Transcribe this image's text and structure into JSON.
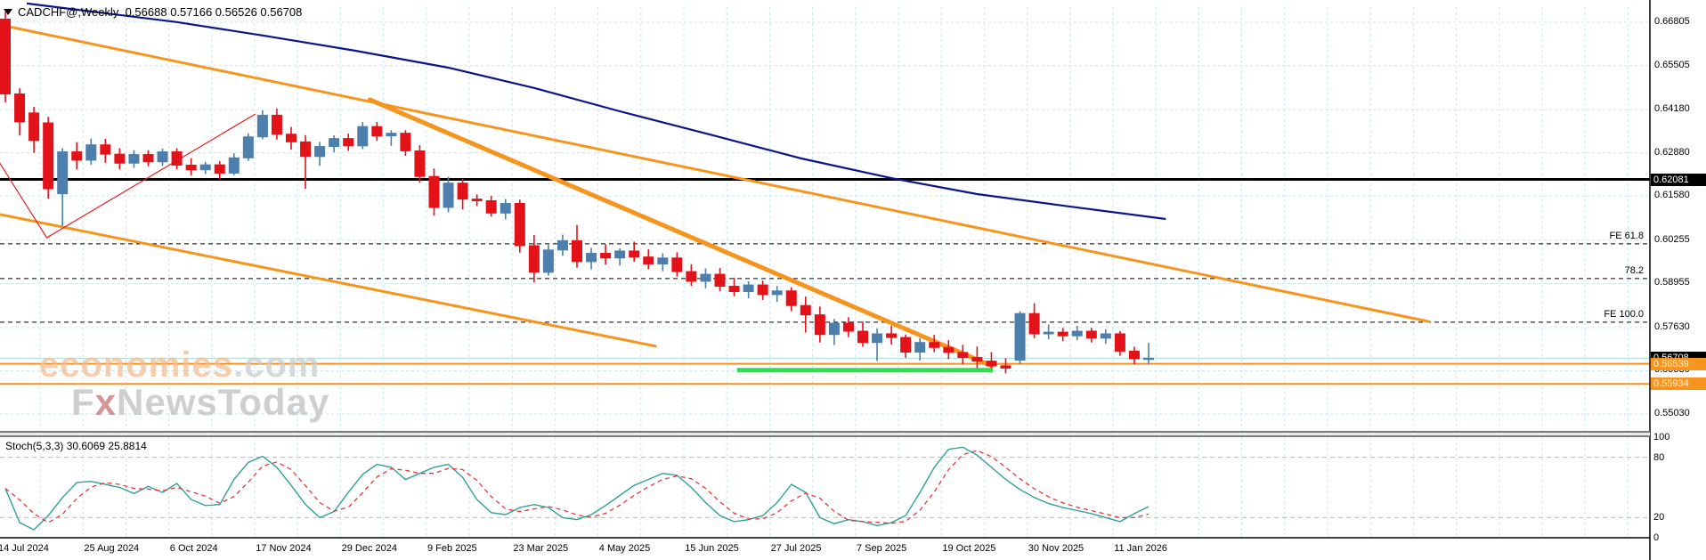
{
  "header": {
    "symbol_title": "CADCHF@,Weekly",
    "ohlc_text": "0.56688 0.57166 0.56526 0.56708",
    "open": "0.56688",
    "high": "0.57166",
    "low": "0.56526",
    "close": "0.56708"
  },
  "watermark": {
    "line1_main": "economies",
    "line1_suffix": ".com",
    "line2_a": "F",
    "line2_b": "x",
    "line2_c": "NewsToday"
  },
  "colors": {
    "bull": "#4d7fad",
    "bear": "#e31219",
    "grid": "#c9e7f0",
    "orange": "#f7941d",
    "navy": "#0b1589",
    "stoch_k": "#2fa198",
    "stoch_d": "#e53935",
    "support_green": "#2ee04e",
    "current_price_line": "#aadcd4",
    "zigzag_red": "#e02020",
    "black_level": "#000000"
  },
  "y_axis": {
    "labels": [
      "0.66805",
      "0.65505",
      "0.64180",
      "0.62880",
      "0.61580",
      "0.60255",
      "0.58955",
      "0.57630",
      "0.56330",
      "0.55030"
    ],
    "top_price": 0.66805,
    "step": 0.013
  },
  "x_axis": {
    "date_labels": [
      "14 Jul 2024",
      "25 Aug 2024",
      "6 Oct 2024",
      "17 Nov 2024",
      "29 Dec 2024",
      "9 Feb 2025",
      "23 Mar 2025",
      "4 May 2025",
      "15 Jun 2025",
      "27 Jul 2025",
      "7 Sep 2025",
      "19 Oct 2025",
      "30 Nov 2025",
      "11 Jan 2026"
    ]
  },
  "badges": [
    {
      "text": "0.62081",
      "price": 0.62081,
      "style": "black"
    },
    {
      "text": "0.56708",
      "price": 0.56708,
      "style": "black"
    },
    {
      "text": "0.56539",
      "price": 0.56539,
      "style": "orange"
    },
    {
      "text": "0.55934",
      "price": 0.55934,
      "style": "orange"
    }
  ],
  "stoch_panel": {
    "label": "Stoch(5,3,3) 30.6069 25.8814",
    "scale_labels": [
      "100",
      "80",
      "20",
      "0"
    ],
    "scale_values": [
      100,
      80,
      20,
      0
    ],
    "k_value": 30.6069,
    "d_value": 25.8814
  },
  "chart_data": {
    "type": "candlestick",
    "symbol": "CADCHF",
    "timeframe": "Weekly",
    "y_range": [
      0.548,
      0.6747
    ],
    "fibo_expansion": [
      {
        "label": "FE 61.8",
        "price": 0.60144
      },
      {
        "label": "78.2",
        "price": 0.59101
      },
      {
        "label": "FE 100.0",
        "price": 0.5779
      }
    ],
    "hlines": [
      {
        "price": 0.62081,
        "color": "black",
        "width": 3,
        "note": "pivot"
      },
      {
        "price": 0.56539,
        "color": "orange",
        "width": 2,
        "note": "support"
      },
      {
        "price": 0.55934,
        "color": "orange",
        "width": 2,
        "note": "support"
      },
      {
        "price": 0.56708,
        "color": "current",
        "width": 1,
        "note": "last price"
      }
    ],
    "support_segment": {
      "price": 0.5635,
      "week_start": 51.2,
      "week_end": 69.1
    },
    "trendlines": [
      {
        "name": "upper-resistance",
        "w1": -0.4,
        "p1": 0.6673,
        "w2": 99.6,
        "p2": 0.5781,
        "width": 3
      },
      {
        "name": "steep-resistance",
        "w1": 25.5,
        "p1": 0.6448,
        "w2": 69.0,
        "p2": 0.5648,
        "width": 5
      },
      {
        "name": "lower-channel",
        "w1": -0.4,
        "p1": 0.6103,
        "w2": 45.5,
        "p2": 0.5707,
        "width": 3
      }
    ],
    "ma_line": [
      [
        1.5,
        0.6737
      ],
      [
        6,
        0.6713
      ],
      [
        12,
        0.6681
      ],
      [
        18,
        0.6641
      ],
      [
        24.5,
        0.6595
      ],
      [
        31,
        0.6544
      ],
      [
        37,
        0.6483
      ],
      [
        43,
        0.6413
      ],
      [
        49.5,
        0.6341
      ],
      [
        55.7,
        0.6271
      ],
      [
        62,
        0.6212
      ],
      [
        68,
        0.6164
      ],
      [
        74.4,
        0.6127
      ],
      [
        81.2,
        0.6089
      ]
    ],
    "zigzag": [
      [
        -0.4,
        0.6258
      ],
      [
        2.9,
        0.6033
      ],
      [
        17.5,
        0.6405
      ]
    ],
    "candles_ohlc": [
      [
        0.669,
        0.6712,
        0.644,
        0.6465
      ],
      [
        0.6465,
        0.6482,
        0.634,
        0.6381
      ],
      [
        0.6408,
        0.6426,
        0.6288,
        0.6325
      ],
      [
        0.6378,
        0.6396,
        0.615,
        0.618
      ],
      [
        0.6165,
        0.6302,
        0.6068,
        0.6291
      ],
      [
        0.6291,
        0.632,
        0.6238,
        0.6266
      ],
      [
        0.6266,
        0.6331,
        0.6252,
        0.6312
      ],
      [
        0.6312,
        0.633,
        0.6258,
        0.6284
      ],
      [
        0.6284,
        0.6302,
        0.6238,
        0.6257
      ],
      [
        0.6257,
        0.6296,
        0.6243,
        0.6283
      ],
      [
        0.6283,
        0.6296,
        0.6248,
        0.6261
      ],
      [
        0.6261,
        0.6301,
        0.6249,
        0.6291
      ],
      [
        0.6291,
        0.6302,
        0.6238,
        0.6251
      ],
      [
        0.6251,
        0.6272,
        0.622,
        0.6237
      ],
      [
        0.6237,
        0.6261,
        0.6224,
        0.6252
      ],
      [
        0.6252,
        0.6263,
        0.6208,
        0.6227
      ],
      [
        0.6227,
        0.6287,
        0.6221,
        0.6273
      ],
      [
        0.6273,
        0.6347,
        0.6264,
        0.6336
      ],
      [
        0.6336,
        0.6416,
        0.6329,
        0.6401
      ],
      [
        0.6401,
        0.6421,
        0.6328,
        0.6344
      ],
      [
        0.6344,
        0.6366,
        0.6298,
        0.6321
      ],
      [
        0.6321,
        0.6341,
        0.618,
        0.6277
      ],
      [
        0.6277,
        0.6321,
        0.6249,
        0.6307
      ],
      [
        0.6307,
        0.6341,
        0.6289,
        0.6331
      ],
      [
        0.6331,
        0.6346,
        0.6294,
        0.6309
      ],
      [
        0.6309,
        0.6381,
        0.6299,
        0.6367
      ],
      [
        0.6367,
        0.6381,
        0.6324,
        0.6339
      ],
      [
        0.6339,
        0.6356,
        0.6309,
        0.6347
      ],
      [
        0.6347,
        0.6356,
        0.6279,
        0.6294
      ],
      [
        0.6294,
        0.6311,
        0.6198,
        0.6217
      ],
      [
        0.6217,
        0.6241,
        0.6099,
        0.6124
      ],
      [
        0.6124,
        0.6216,
        0.6109,
        0.6197
      ],
      [
        0.6197,
        0.6211,
        0.6118,
        0.6149
      ],
      [
        0.6149,
        0.6163,
        0.6128,
        0.6144
      ],
      [
        0.6144,
        0.6159,
        0.6096,
        0.6107
      ],
      [
        0.6107,
        0.6149,
        0.6088,
        0.6136
      ],
      [
        0.6136,
        0.6147,
        0.5988,
        0.6009
      ],
      [
        0.6009,
        0.6041,
        0.5898,
        0.5929
      ],
      [
        0.5929,
        0.6012,
        0.5919,
        0.5996
      ],
      [
        0.5996,
        0.6042,
        0.5978,
        0.6024
      ],
      [
        0.6024,
        0.6071,
        0.5943,
        0.5961
      ],
      [
        0.5961,
        0.6002,
        0.5938,
        0.5986
      ],
      [
        0.5986,
        0.6013,
        0.5952,
        0.5972
      ],
      [
        0.5972,
        0.6001,
        0.5949,
        0.5993
      ],
      [
        0.5993,
        0.6021,
        0.5961,
        0.5975
      ],
      [
        0.5975,
        0.5998,
        0.5938,
        0.5954
      ],
      [
        0.5954,
        0.5986,
        0.5932,
        0.5972
      ],
      [
        0.5972,
        0.5989,
        0.5916,
        0.5931
      ],
      [
        0.5931,
        0.5953,
        0.5888,
        0.5902
      ],
      [
        0.5902,
        0.5941,
        0.5881,
        0.5923
      ],
      [
        0.5923,
        0.5942,
        0.5872,
        0.5887
      ],
      [
        0.5887,
        0.5912,
        0.5857,
        0.5871
      ],
      [
        0.5871,
        0.5902,
        0.5851,
        0.5891
      ],
      [
        0.5891,
        0.5904,
        0.5846,
        0.5862
      ],
      [
        0.5862,
        0.5888,
        0.584,
        0.5873
      ],
      [
        0.5873,
        0.5884,
        0.5812,
        0.5829
      ],
      [
        0.5829,
        0.5856,
        0.5748,
        0.5801
      ],
      [
        0.5801,
        0.5826,
        0.5718,
        0.5742
      ],
      [
        0.5742,
        0.5789,
        0.571,
        0.5776
      ],
      [
        0.5776,
        0.5794,
        0.5734,
        0.5752
      ],
      [
        0.5752,
        0.5781,
        0.5705,
        0.5718
      ],
      [
        0.5718,
        0.576,
        0.5662,
        0.5744
      ],
      [
        0.5744,
        0.5768,
        0.5712,
        0.5733
      ],
      [
        0.5733,
        0.5742,
        0.5672,
        0.5689
      ],
      [
        0.5689,
        0.5731,
        0.5664,
        0.5718
      ],
      [
        0.5718,
        0.5741,
        0.5689,
        0.5703
      ],
      [
        0.5703,
        0.5725,
        0.5668,
        0.5688
      ],
      [
        0.5688,
        0.5711,
        0.5652,
        0.5673
      ],
      [
        0.5673,
        0.5706,
        0.5638,
        0.5662
      ],
      [
        0.5662,
        0.5689,
        0.5628,
        0.5648
      ],
      [
        0.5648,
        0.5671,
        0.5625,
        0.5641
      ],
      [
        0.5665,
        0.5812,
        0.5652,
        0.5805
      ],
      [
        0.5805,
        0.5836,
        0.5731,
        0.5744
      ],
      [
        0.5744,
        0.5772,
        0.5728,
        0.5749
      ],
      [
        0.5749,
        0.5762,
        0.5722,
        0.5738
      ],
      [
        0.5738,
        0.5768,
        0.5725,
        0.5752
      ],
      [
        0.5752,
        0.5762,
        0.5718,
        0.5731
      ],
      [
        0.5731,
        0.5758,
        0.5714,
        0.5744
      ],
      [
        0.5744,
        0.5752,
        0.5678,
        0.5692
      ],
      [
        0.5692,
        0.5705,
        0.5652,
        0.5669
      ],
      [
        0.5669,
        0.5717,
        0.5653,
        0.5671
      ]
    ],
    "stochastic": {
      "k_series": [
        49,
        15,
        8,
        22,
        40,
        55,
        56,
        53,
        50,
        44,
        51,
        45,
        54,
        38,
        32,
        33,
        58,
        75,
        81,
        70,
        52,
        33,
        20,
        26,
        45,
        63,
        73,
        70,
        58,
        64,
        70,
        73,
        60,
        38,
        25,
        23,
        30,
        33,
        30,
        20,
        18,
        23,
        32,
        42,
        52,
        58,
        64,
        62,
        50,
        35,
        22,
        16,
        18,
        22,
        35,
        53,
        45,
        20,
        14,
        18,
        16,
        12,
        15,
        22,
        45,
        70,
        88,
        90,
        82,
        70,
        58,
        48,
        40,
        34,
        30,
        27,
        24,
        20,
        16,
        24,
        31
      ],
      "levels": [
        80,
        20
      ],
      "range": [
        0,
        100
      ]
    }
  }
}
